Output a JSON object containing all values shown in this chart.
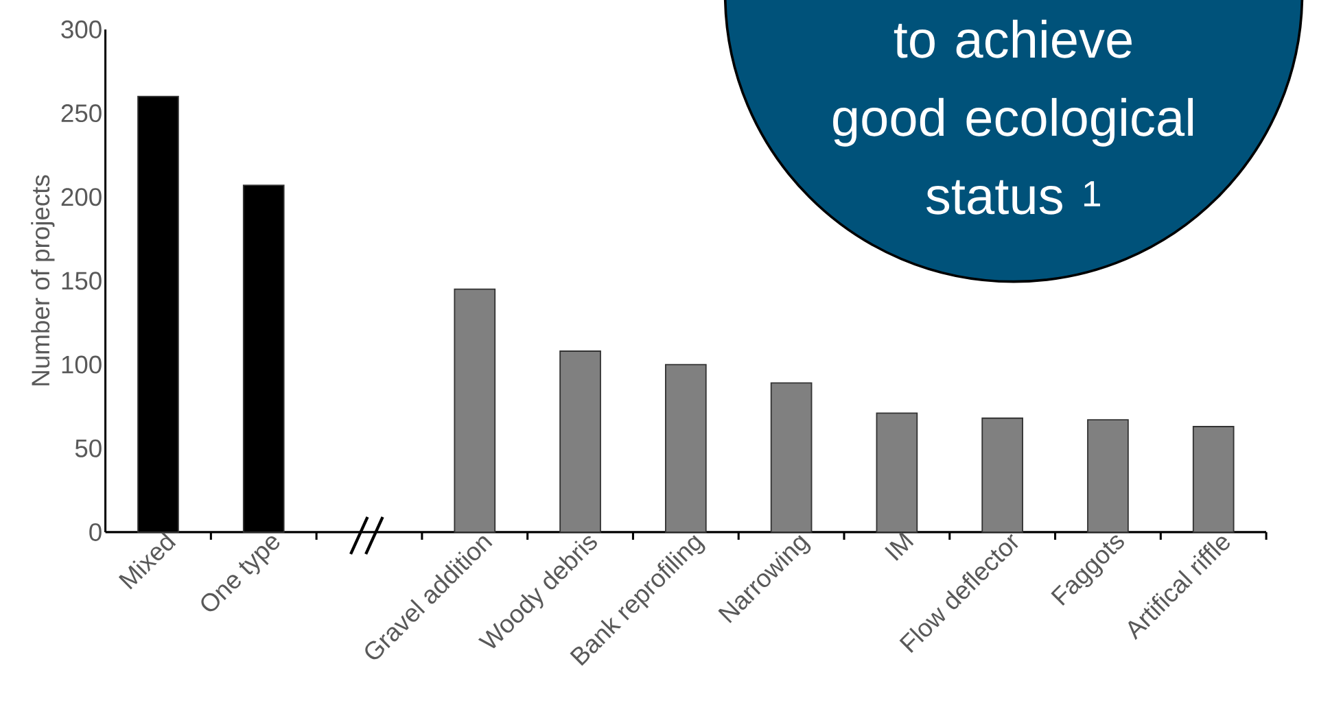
{
  "chart_data": {
    "type": "bar",
    "ylabel": "Number of projects",
    "categories": [
      "Mixed",
      "One type",
      null,
      "Gravel addition",
      "Woody debris",
      "Bank reprofiling",
      "Narrowing",
      "IM",
      "Flow deflector",
      "Faggots",
      "Artifical riffle"
    ],
    "values": [
      260,
      207,
      null,
      145,
      108,
      100,
      89,
      71,
      68,
      67,
      63
    ],
    "colors": [
      "#000000",
      "#000000",
      "#808080",
      "#808080",
      "#808080",
      "#808080",
      "#808080",
      "#808080",
      "#808080",
      "#808080",
      "#808080"
    ],
    "ylim": [
      0,
      300
    ],
    "yticks": [
      0,
      50,
      100,
      150,
      200,
      250,
      300
    ],
    "grid": false,
    "legend": false,
    "annotations": [
      "to achieve good ecological status $^{1}$"
    ]
  }
}
